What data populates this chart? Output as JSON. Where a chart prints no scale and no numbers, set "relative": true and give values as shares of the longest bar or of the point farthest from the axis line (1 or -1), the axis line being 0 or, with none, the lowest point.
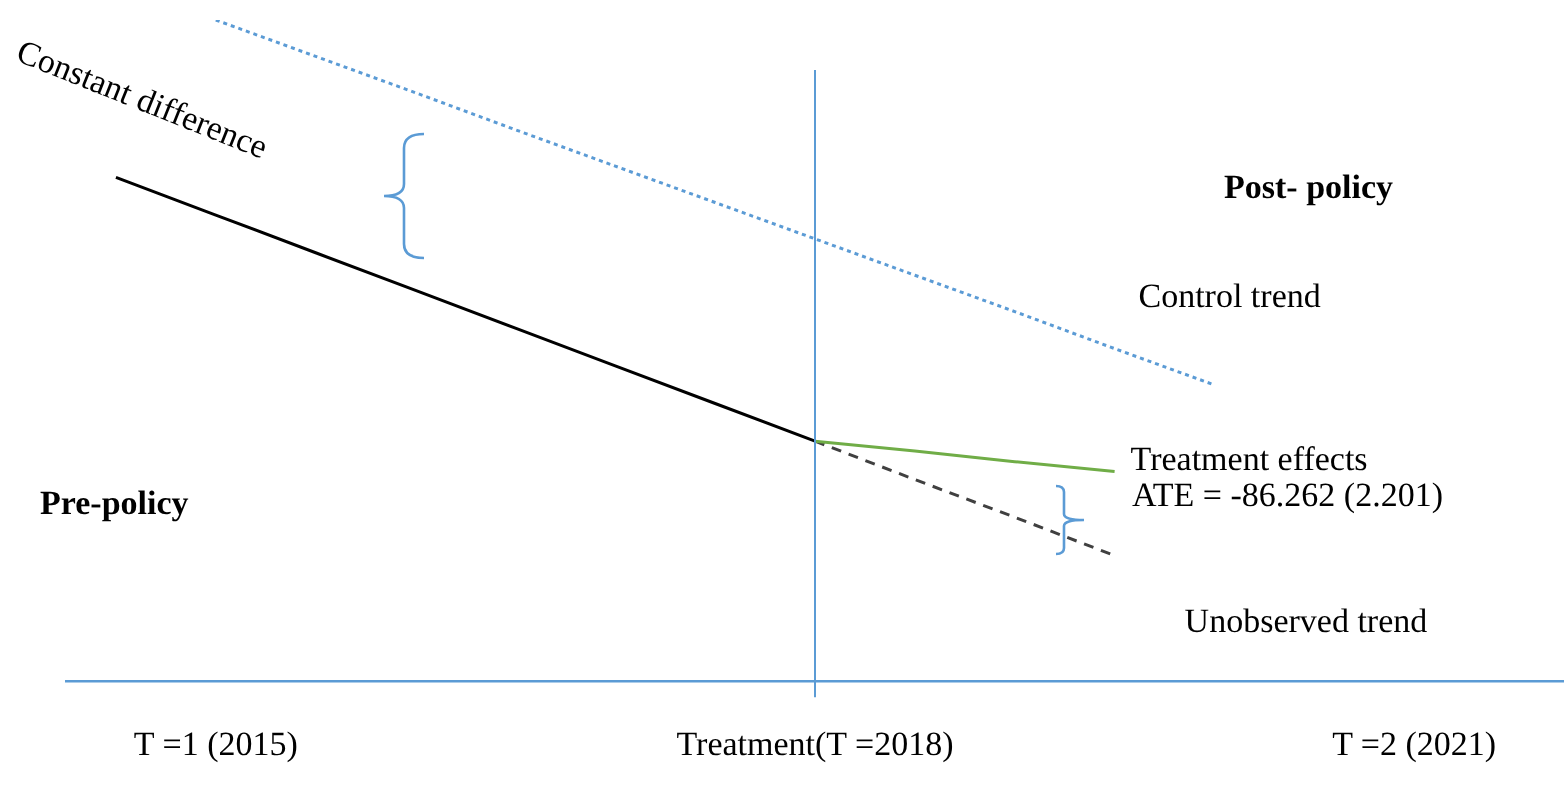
{
  "chart_data": {
    "type": "line",
    "relative": true,
    "categories": [
      null,
      "T =1 (2015)",
      null,
      null,
      null,
      null,
      null,
      "Treatment(T =2018)",
      null,
      null,
      null,
      null,
      null,
      "T =2 (2021)",
      null
    ],
    "marker": "none",
    "series": [
      {
        "name": "Control trend",
        "color": "#5b9bd5",
        "line_style": "dotted",
        "values": [
          null,
          1,
          0.945,
          0.89,
          0.834,
          0.779,
          0.724,
          0.669,
          0.614,
          0.559,
          0.503,
          0.448,
          null,
          null,
          null
        ]
      },
      {
        "color": "#000000",
        "line_style": "solid",
        "values": [
          0.762,
          0.705,
          0.648,
          0.591,
          0.534,
          0.477,
          0.42,
          0.363,
          null,
          null,
          null,
          null,
          null,
          null,
          null
        ]
      },
      {
        "name": "Treatment effects",
        "color": "#70ad47",
        "line_style": "solid",
        "values": [
          null,
          null,
          null,
          null,
          null,
          null,
          null,
          0.363,
          0.348,
          0.332,
          0.317,
          null,
          null,
          null,
          null
        ]
      },
      {
        "name": "Unobserved trend",
        "color": "#404040",
        "line_style": "dashed",
        "values": [
          null,
          null,
          null,
          null,
          null,
          null,
          null,
          0.363,
          0.305,
          0.248,
          0.19,
          null,
          null,
          null,
          null
        ]
      }
    ],
    "ref_lines": [
      {
        "axis": "x",
        "value": "Treatment(T =2018)",
        "color": "#5b9bd5"
      }
    ],
    "annotations": [
      "Constant difference",
      "Pre-policy",
      "Post- policy",
      "ATE = -86.262 (2.201)"
    ]
  }
}
